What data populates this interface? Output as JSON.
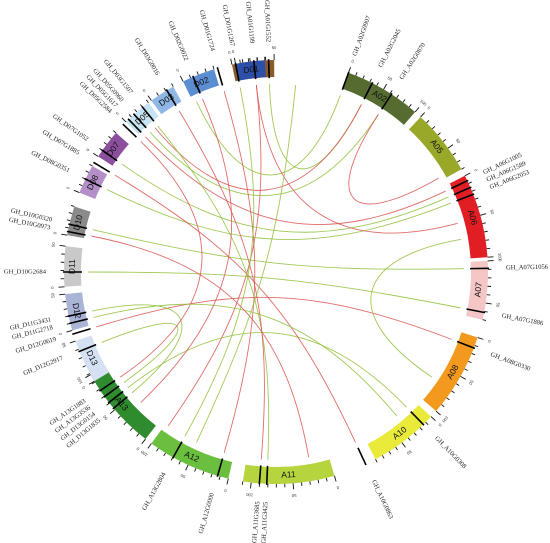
{
  "diagram": {
    "chromosomes": [
      {
        "id": "A01",
        "label": "A01",
        "color": "#8b5a2b",
        "start": -12,
        "end": -0.5
      },
      {
        "id": "A02",
        "label": "A02",
        "color": "#556b2f",
        "start": 20,
        "end": 41
      },
      {
        "id": "A05",
        "label": "A05",
        "color": "#9aa82a",
        "start": 43,
        "end": 61
      },
      {
        "id": "A06",
        "label": "A06",
        "color": "#e01e24",
        "start": 63,
        "end": 86
      },
      {
        "id": "A07",
        "label": "A07",
        "color": "#f5c6c6",
        "start": 87,
        "end": 103
      },
      {
        "id": "A08",
        "label": "A08",
        "color": "#f39a1e",
        "start": 108,
        "end": 131
      },
      {
        "id": "A10",
        "label": "A10",
        "color": "#eaea3a",
        "start": 133,
        "end": 152
      },
      {
        "id": "A11",
        "label": "A11",
        "color": "#b5d43e",
        "start": 164,
        "end": 189
      },
      {
        "id": "A12",
        "label": "A12",
        "color": "#6abf3e",
        "start": 193,
        "end": 216
      },
      {
        "id": "A13",
        "label": "A13",
        "color": "#2e8b2e",
        "start": 218,
        "end": 241
      },
      {
        "id": "D13",
        "label": "D13",
        "color": "#d5e1f2",
        "start": 239,
        "end": 251
      },
      {
        "id": "D12",
        "label": "D12",
        "color": "#a9b4d6",
        "start": 254,
        "end": 264
      },
      {
        "id": "D11",
        "label": "D11",
        "color": "#c9c9c9",
        "start": 266,
        "end": 277
      },
      {
        "id": "D10",
        "label": "D10",
        "color": "#8a8a8a",
        "start": 280,
        "end": 288
      },
      {
        "id": "D08",
        "label": "D08",
        "color": "#b48ec6",
        "start": 292,
        "end": 300
      },
      {
        "id": "D07",
        "label": "D07",
        "color": "#8c4f9e",
        "start": 303,
        "end": 311
      },
      {
        "id": "D05",
        "label": "D05",
        "color": "#c5e3f0",
        "start": 315,
        "end": 323
      },
      {
        "id": "D03",
        "label": "D03",
        "color": "#8fb7e5",
        "start": 324,
        "end": 331
      },
      {
        "id": "D02",
        "label": "D02",
        "color": "#5b8dd1",
        "start": 334,
        "end": 343
      },
      {
        "id": "D01",
        "label": "D01",
        "color": "#2d4fa8",
        "start": 349,
        "end": 357
      }
    ],
    "genes": [
      {
        "label": "GH_A01G1199",
        "angle": -6
      },
      {
        "label": "GH_A01G1552",
        "angle": -2
      },
      {
        "label": "GH_A02G0907",
        "angle": 20
      },
      {
        "label": "GH_A02G2045",
        "angle": 27
      },
      {
        "label": "GH_A02G0870",
        "angle": 33
      },
      {
        "label": "GH_A06G1005",
        "angle": 64.5
      },
      {
        "label": "GH_A06G1589",
        "angle": 66.5
      },
      {
        "label": "GH_A06G2053",
        "angle": 68.5
      },
      {
        "label": "GH_A07G1056",
        "angle": 89
      },
      {
        "label": "GH_A07G1886",
        "angle": 101
      },
      {
        "label": "GH_A08G0330",
        "angle": 111
      },
      {
        "label": "GH_A10G0308",
        "angle": 136
      },
      {
        "label": "GH_A10G0863",
        "angle": 155
      },
      {
        "label": "GH_A11G3425",
        "angle": 182.5
      },
      {
        "label": "GH_A11G3685",
        "angle": 184.5
      },
      {
        "label": "GH_A12G0000",
        "angle": 196
      },
      {
        "label": "GH_A13G2804",
        "angle": 209
      },
      {
        "label": "GH_D13G1835",
        "angle": 230
      },
      {
        "label": "GH_D13G0154",
        "angle": 232
      },
      {
        "label": "GH_A13G3536",
        "angle": 234
      },
      {
        "label": "GH_A13G1883",
        "angle": 236
      },
      {
        "label": "GH_D12G2917",
        "angle": 248
      },
      {
        "label": "GH_D12G0619",
        "angle": 253
      },
      {
        "label": "GH_D11G2718",
        "angle": 256
      },
      {
        "label": "GH_D11G3431",
        "angle": 258
      },
      {
        "label": "GH_D10G2684",
        "angle": 270
      },
      {
        "label": "GH_D10G0973",
        "angle": 281
      },
      {
        "label": "GH_D10G0320",
        "angle": 283
      },
      {
        "label": "GH_D08G0351",
        "angle": 296
      },
      {
        "label": "GH_D07G1885",
        "angle": 301
      },
      {
        "label": "GH_D07G1052",
        "angle": 305
      },
      {
        "label": "GH_D05G2584",
        "angle": 314
      },
      {
        "label": "GH_D05G1617",
        "angle": 316
      },
      {
        "label": "GH_D05G0960",
        "angle": 318
      },
      {
        "label": "GH_D03G1507",
        "angle": 321
      },
      {
        "label": "GH_D03G0016",
        "angle": 329
      },
      {
        "label": "GH_D02G0022",
        "angle": 337
      },
      {
        "label": "GH_D01G1724",
        "angle": 344
      },
      {
        "label": "GH_D01G1267",
        "angle": 349
      }
    ],
    "links": [
      {
        "a": -6,
        "b": 215,
        "color": "#d9534f"
      },
      {
        "a": -2,
        "b": 27,
        "color": "#8fbf3a"
      },
      {
        "a": 20,
        "b": 335,
        "color": "#8fbf3a"
      },
      {
        "a": 27,
        "b": 320,
        "color": "#d9534f"
      },
      {
        "a": 33,
        "b": 318,
        "color": "#8fbf3a"
      },
      {
        "a": 64.5,
        "b": 316,
        "color": "#d9534f"
      },
      {
        "a": 66.5,
        "b": 305,
        "color": "#8fbf3a"
      },
      {
        "a": 68.5,
        "b": 296,
        "color": "#8fbf3a"
      },
      {
        "a": 89,
        "b": 283,
        "color": "#8fbf3a"
      },
      {
        "a": 101,
        "b": 270,
        "color": "#8fbf3a"
      },
      {
        "a": 111,
        "b": 253,
        "color": "#d9534f"
      },
      {
        "a": 136,
        "b": 232,
        "color": "#8fbf3a"
      },
      {
        "a": 155,
        "b": 301,
        "color": "#d9534f"
      },
      {
        "a": 182.5,
        "b": 321,
        "color": "#8fbf3a"
      },
      {
        "a": 184.5,
        "b": 329,
        "color": "#d9534f"
      },
      {
        "a": 196,
        "b": 344,
        "color": "#d9534f"
      },
      {
        "a": 209,
        "b": 349,
        "color": "#8fbf3a"
      },
      {
        "a": 230,
        "b": 258,
        "color": "#8fbf3a"
      },
      {
        "a": 234,
        "b": 248,
        "color": "#8fbf3a"
      },
      {
        "a": 236,
        "b": 314,
        "color": "#d9534f"
      },
      {
        "a": 60,
        "b": 33,
        "color": "#d9534f"
      },
      {
        "a": 80,
        "b": 124,
        "color": "#8fbf3a"
      },
      {
        "a": 75,
        "b": -6,
        "color": "#d9534f"
      },
      {
        "a": 140,
        "b": 256,
        "color": "#8fbf3a"
      },
      {
        "a": 170,
        "b": 281,
        "color": "#d9534f"
      },
      {
        "a": 205,
        "b": 6,
        "color": "#8fbf3a"
      },
      {
        "a": 226,
        "b": 337,
        "color": "#d9534f"
      }
    ],
    "tick_labels": [
      "0",
      "50",
      "100",
      "150",
      "200",
      "250",
      "300"
    ]
  }
}
